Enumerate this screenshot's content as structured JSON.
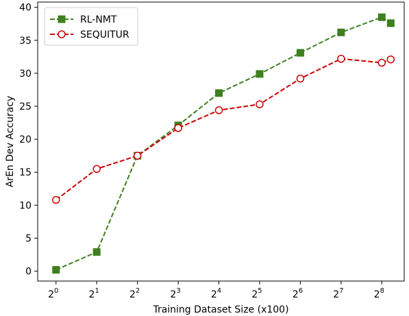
{
  "chart_data": {
    "type": "line",
    "title": "",
    "xlabel": "Training Dataset Size (x100)",
    "ylabel": "ArEn Dev Accuracy",
    "x_scale": "log2",
    "xlim_exponent": [
      -0.45,
      8.55
    ],
    "x_ticks": [
      {
        "base": "2",
        "exp": "0"
      },
      {
        "base": "2",
        "exp": "1"
      },
      {
        "base": "2",
        "exp": "2"
      },
      {
        "base": "2",
        "exp": "3"
      },
      {
        "base": "2",
        "exp": "4"
      },
      {
        "base": "2",
        "exp": "5"
      },
      {
        "base": "2",
        "exp": "6"
      },
      {
        "base": "2",
        "exp": "7"
      },
      {
        "base": "2",
        "exp": "8"
      }
    ],
    "ylim": [
      -1.5,
      40.8
    ],
    "y_ticks": [
      "0",
      "5",
      "10",
      "15",
      "20",
      "25",
      "30",
      "35",
      "40"
    ],
    "grid": false,
    "legend_position": "top-left",
    "series": [
      {
        "name": "RL-NMT",
        "color": "#3f7f1f",
        "line_style": "dashed",
        "marker": "filled-square",
        "x": [
          1,
          2,
          4,
          8,
          16,
          32,
          64,
          128,
          256,
          298
        ],
        "y": [
          0.2,
          2.9,
          17.5,
          22.1,
          27.0,
          29.9,
          33.1,
          36.2,
          38.5,
          37.6
        ]
      },
      {
        "name": "SEQUITUR",
        "color": "#cc0000",
        "line_style": "dashed",
        "marker": "open-circle",
        "x": [
          1,
          2,
          4,
          8,
          16,
          32,
          64,
          128,
          256,
          298
        ],
        "y": [
          10.8,
          15.5,
          17.5,
          21.7,
          24.4,
          25.3,
          29.2,
          32.2,
          31.6,
          32.1
        ]
      }
    ]
  }
}
